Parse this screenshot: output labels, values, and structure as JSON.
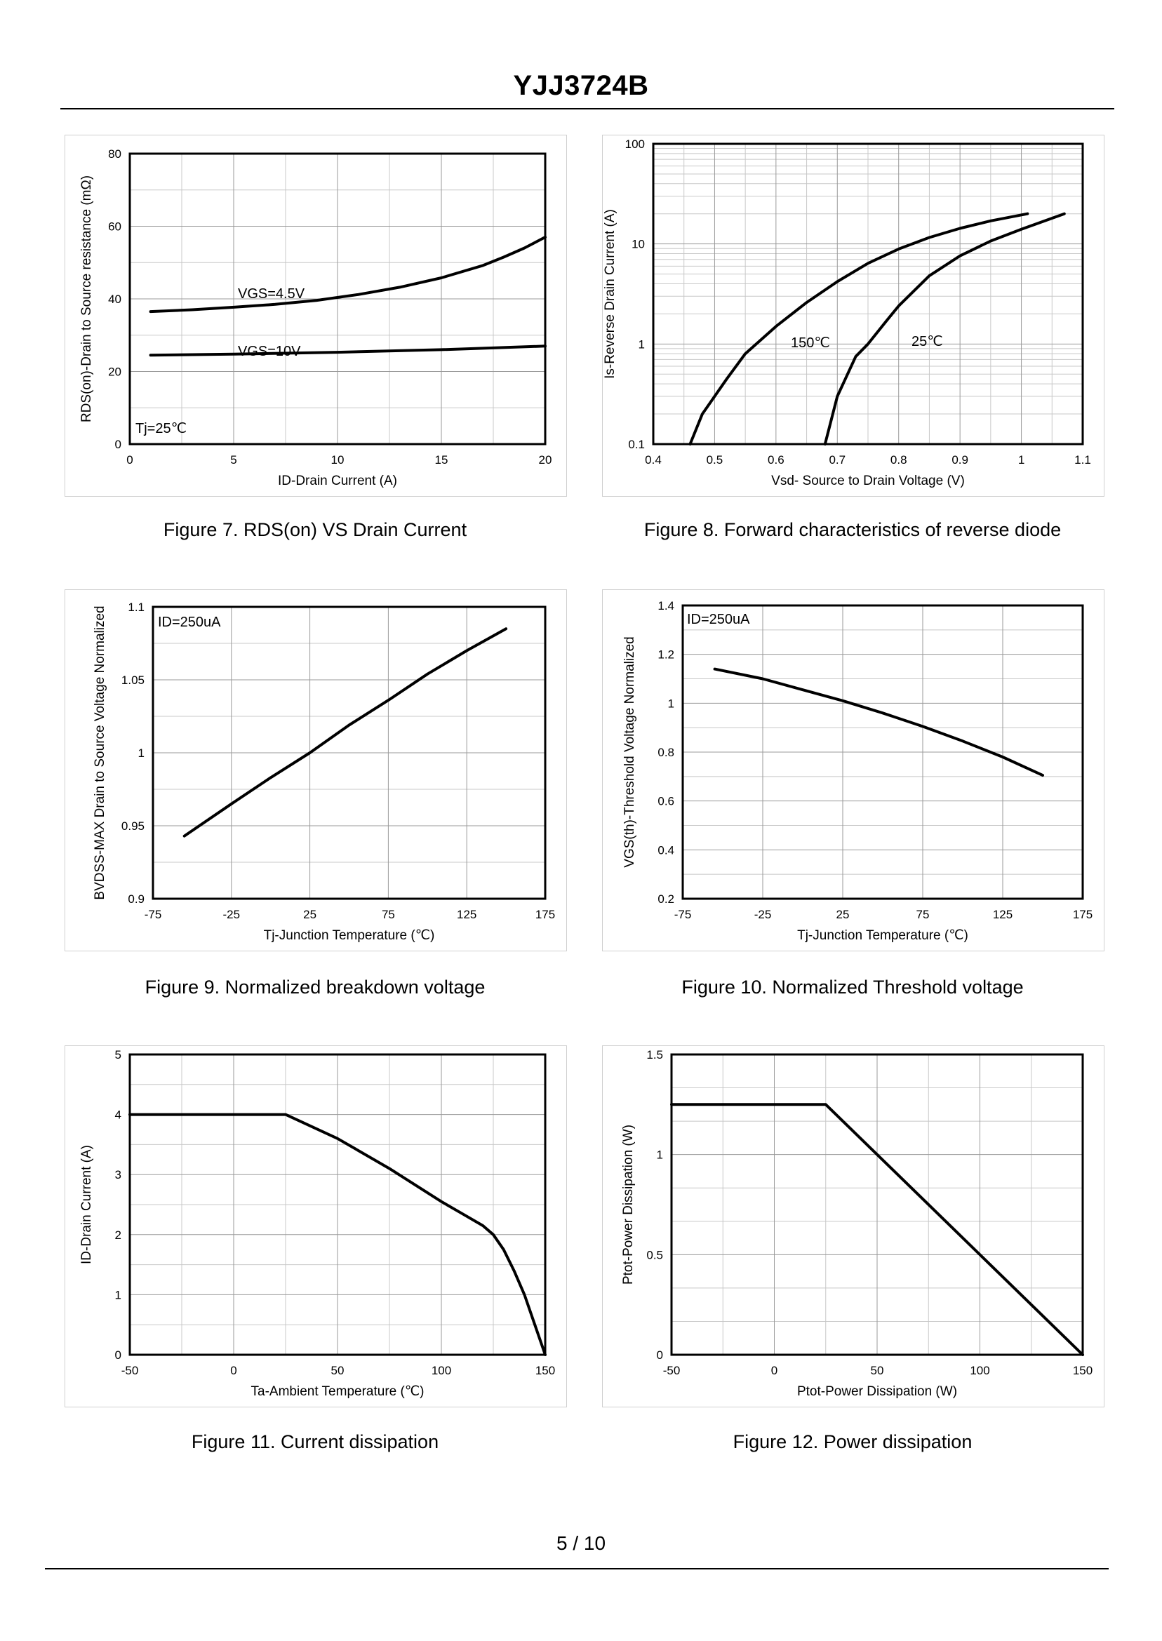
{
  "document": {
    "title": "YJJ3724B",
    "page": "5 / 10"
  },
  "figures": [
    {
      "id": "fig7",
      "caption": "Figure 7.  RDS(on) VS Drain Current"
    },
    {
      "id": "fig8",
      "caption": "Figure 8.  Forward characteristics of reverse diode"
    },
    {
      "id": "fig9",
      "caption": "Figure 9.  Normalized breakdown voltage"
    },
    {
      "id": "fig10",
      "caption": "Figure 10.  Normalized Threshold voltage"
    },
    {
      "id": "fig11",
      "caption": "Figure 11.  Current dissipation"
    },
    {
      "id": "fig12",
      "caption": "Figure 12.  Power dissipation"
    }
  ],
  "chart_data": [
    {
      "id": "fig7",
      "type": "line",
      "xlabel": "ID-Drain Current (A)",
      "ylabel": "RDS(on)-Drain to Source resistance (mΩ)",
      "xlim": [
        0,
        20
      ],
      "ylim": [
        0,
        80
      ],
      "xticks": [
        0,
        5,
        10,
        15,
        20
      ],
      "yticks": [
        0,
        20,
        40,
        60,
        80
      ],
      "grid": true,
      "annotations": [
        "Tj=25℃"
      ],
      "series": [
        {
          "name": "VGS=4.5V",
          "x": [
            1,
            3,
            5,
            7,
            9,
            11,
            13,
            15,
            17,
            18,
            19,
            20
          ],
          "y": [
            36.5,
            37,
            37.7,
            38.5,
            39.6,
            41.2,
            43.2,
            45.8,
            49.2,
            51.5,
            54,
            57
          ]
        },
        {
          "name": "VGS=10V",
          "x": [
            1,
            5,
            10,
            15,
            20
          ],
          "y": [
            24.5,
            24.8,
            25.3,
            26.0,
            27.0
          ]
        }
      ]
    },
    {
      "id": "fig8",
      "type": "line",
      "xlabel": "Vsd- Source to Drain Voltage (V)",
      "ylabel": "Is-Reverse Drain Current (A)",
      "xlim": [
        0.4,
        1.1
      ],
      "ylim": [
        0.1,
        100
      ],
      "yscale": "log",
      "xticks": [
        0.4,
        0.5,
        0.6,
        0.7,
        0.8,
        0.9,
        1,
        1.1
      ],
      "yticks": [
        0.1,
        1,
        10,
        100
      ],
      "grid": true,
      "series": [
        {
          "name": "150℃",
          "x": [
            0.46,
            0.48,
            0.52,
            0.55,
            0.6,
            0.65,
            0.7,
            0.75,
            0.8,
            0.85,
            0.9,
            0.95,
            1.01
          ],
          "y": [
            0.1,
            0.2,
            0.45,
            0.8,
            1.5,
            2.6,
            4.2,
            6.4,
            8.9,
            11.6,
            14.3,
            17.0,
            20.0
          ]
        },
        {
          "name": "25℃",
          "x": [
            0.68,
            0.7,
            0.73,
            0.75,
            0.78,
            0.8,
            0.85,
            0.9,
            0.95,
            1.0,
            1.07
          ],
          "y": [
            0.1,
            0.3,
            0.75,
            1.0,
            1.7,
            2.4,
            4.8,
            7.6,
            10.7,
            14.0,
            20.0
          ]
        }
      ]
    },
    {
      "id": "fig9",
      "type": "line",
      "xlabel": "Tj-Junction Temperature (℃)",
      "ylabel": "BVDSS-MAX Drain to Source Voltage Normalized",
      "xlim": [
        -75,
        175
      ],
      "ylim": [
        0.9,
        1.1
      ],
      "xticks": [
        -75,
        -25,
        25,
        75,
        125,
        175
      ],
      "yticks": [
        0.9,
        0.95,
        1,
        1.05,
        1.1
      ],
      "grid": true,
      "annotations": [
        "ID=250uA"
      ],
      "series": [
        {
          "name": "",
          "x": [
            -55,
            -25,
            0,
            25,
            50,
            75,
            100,
            125,
            150
          ],
          "y": [
            0.943,
            0.965,
            0.983,
            1.0,
            1.019,
            1.036,
            1.054,
            1.07,
            1.085
          ]
        }
      ]
    },
    {
      "id": "fig10",
      "type": "line",
      "xlabel": "Tj-Junction Temperature (℃)",
      "ylabel": "VGS(th)-Threshold Voltage Normalized",
      "xlim": [
        -75,
        175
      ],
      "ylim": [
        0.2,
        1.4
      ],
      "xticks": [
        -75,
        -25,
        25,
        75,
        125,
        175
      ],
      "yticks": [
        0.2,
        0.4,
        0.6,
        0.8,
        1,
        1.2,
        1.4
      ],
      "grid": true,
      "annotations": [
        "ID=250uA"
      ],
      "series": [
        {
          "name": "",
          "x": [
            -55,
            -25,
            0,
            25,
            50,
            75,
            100,
            125,
            150
          ],
          "y": [
            1.14,
            1.1,
            1.055,
            1.01,
            0.96,
            0.905,
            0.845,
            0.78,
            0.705
          ]
        }
      ]
    },
    {
      "id": "fig11",
      "type": "line",
      "xlabel": "Ta-Ambient Temperature (℃)",
      "ylabel": "ID-Drain Current (A)",
      "xlim": [
        -50,
        150
      ],
      "ylim": [
        0,
        5
      ],
      "xticks": [
        -50,
        0,
        50,
        100,
        150
      ],
      "yticks": [
        0,
        1,
        2,
        3,
        4,
        5
      ],
      "grid": true,
      "series": [
        {
          "name": "",
          "x": [
            -50,
            25,
            50,
            75,
            100,
            110,
            120,
            125,
            130,
            135,
            140,
            145,
            150
          ],
          "y": [
            4.0,
            4.0,
            3.6,
            3.1,
            2.55,
            2.35,
            2.15,
            2.0,
            1.75,
            1.4,
            1.0,
            0.5,
            0.0
          ]
        }
      ]
    },
    {
      "id": "fig12",
      "type": "line",
      "xlabel": "Ptot-Power Dissipation (W)",
      "ylabel": "Ptot-Power Dissipation (W)",
      "xlim": [
        -50,
        150
      ],
      "ylim": [
        0,
        1.5
      ],
      "xticks": [
        -50,
        0,
        50,
        100,
        150
      ],
      "yticks": [
        0,
        0.5,
        1,
        1.5
      ],
      "grid": true,
      "series": [
        {
          "name": "",
          "x": [
            -50,
            25,
            150
          ],
          "y": [
            1.25,
            1.25,
            0.0
          ]
        }
      ]
    }
  ]
}
